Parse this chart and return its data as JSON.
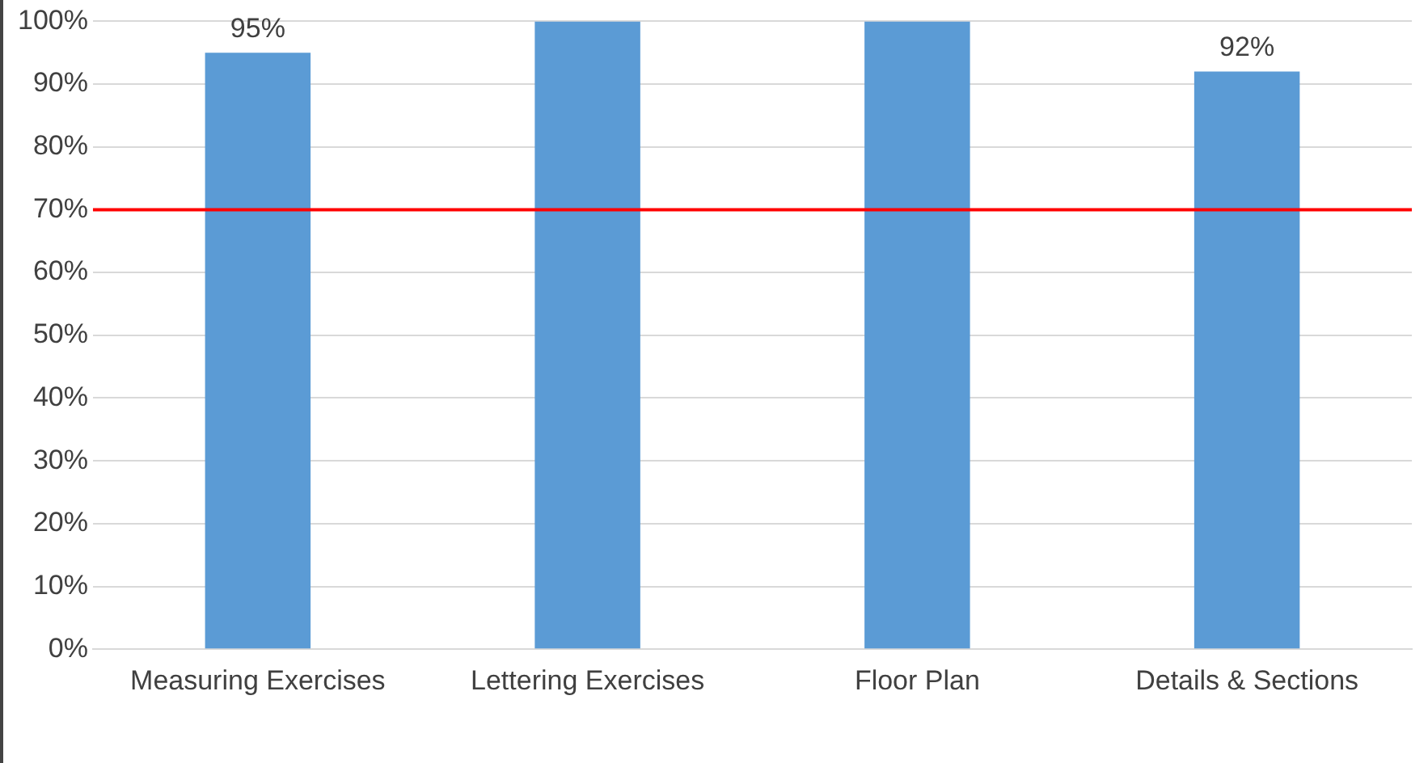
{
  "chart_data": {
    "type": "bar",
    "categories": [
      "Measuring Exercises",
      "Lettering Exercises",
      "Floor Plan",
      "Details & Sections"
    ],
    "values": [
      95,
      100,
      100,
      92
    ],
    "color": "#5b9bd5",
    "value_labels": [
      "95%",
      null,
      null,
      "92%"
    ],
    "ylim": [
      0,
      100
    ],
    "yticks": [
      {
        "value": 0,
        "label": "0%"
      },
      {
        "value": 10,
        "label": "10%"
      },
      {
        "value": 20,
        "label": "20%"
      },
      {
        "value": 30,
        "label": "30%"
      },
      {
        "value": 40,
        "label": "40%"
      },
      {
        "value": 50,
        "label": "50%"
      },
      {
        "value": 60,
        "label": "60%"
      },
      {
        "value": 70,
        "label": "70%"
      },
      {
        "value": 80,
        "label": "80%"
      },
      {
        "value": 90,
        "label": "90%"
      },
      {
        "value": 100,
        "label": "100%"
      }
    ],
    "grid": "y",
    "ref_lines": [
      {
        "axis": "y",
        "value": 70,
        "color": "#ff0000"
      }
    ]
  }
}
